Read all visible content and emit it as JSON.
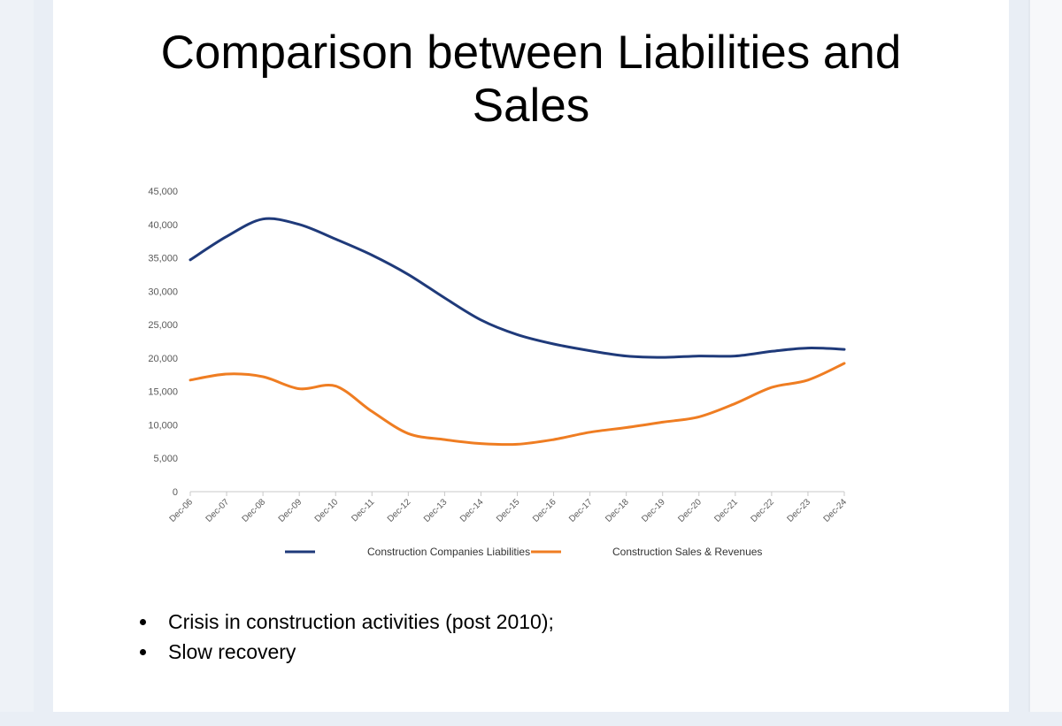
{
  "slide": {
    "title_line1": "Comparison between Liabilities and",
    "title_line2": "Sales",
    "bullets": [
      "Crisis in construction activities (post 2010);",
      "Slow recovery"
    ]
  },
  "chart_data": {
    "type": "line",
    "title": "",
    "xlabel": "",
    "ylabel": "",
    "ylim": [
      0,
      45000
    ],
    "yticks": [
      0,
      5000,
      10000,
      15000,
      20000,
      25000,
      30000,
      35000,
      40000,
      45000
    ],
    "ytick_labels": [
      "0",
      "5,000",
      "10,000",
      "15,000",
      "20,000",
      "25,000",
      "30,000",
      "35,000",
      "40,000",
      "45,000"
    ],
    "categories": [
      "Dec-06",
      "Dec-07",
      "Dec-08",
      "Dec-09",
      "Dec-10",
      "Dec-11",
      "Dec-12",
      "Dec-13",
      "Dec-14",
      "Dec-15",
      "Dec-16",
      "Dec-17",
      "Dec-18",
      "Dec-19",
      "Dec-20",
      "Dec-21",
      "Dec-22",
      "Dec-23",
      "Dec-24"
    ],
    "grid": false,
    "legend_position": "bottom",
    "series": [
      {
        "name": "Construction Companies Liabilities",
        "color": "#1f3a7a",
        "values": [
          34700,
          38200,
          40800,
          40000,
          37800,
          35400,
          32500,
          29000,
          25700,
          23500,
          22100,
          21100,
          20300,
          20100,
          20300,
          20300,
          21000,
          21500,
          21300
        ]
      },
      {
        "name": "Construction Sales & Revenues",
        "color": "#ef7d22",
        "values": [
          16700,
          17600,
          17200,
          15400,
          15800,
          12000,
          8700,
          7800,
          7200,
          7100,
          7800,
          8900,
          9600,
          10400,
          11200,
          13200,
          15600,
          16700,
          19200
        ]
      }
    ]
  }
}
